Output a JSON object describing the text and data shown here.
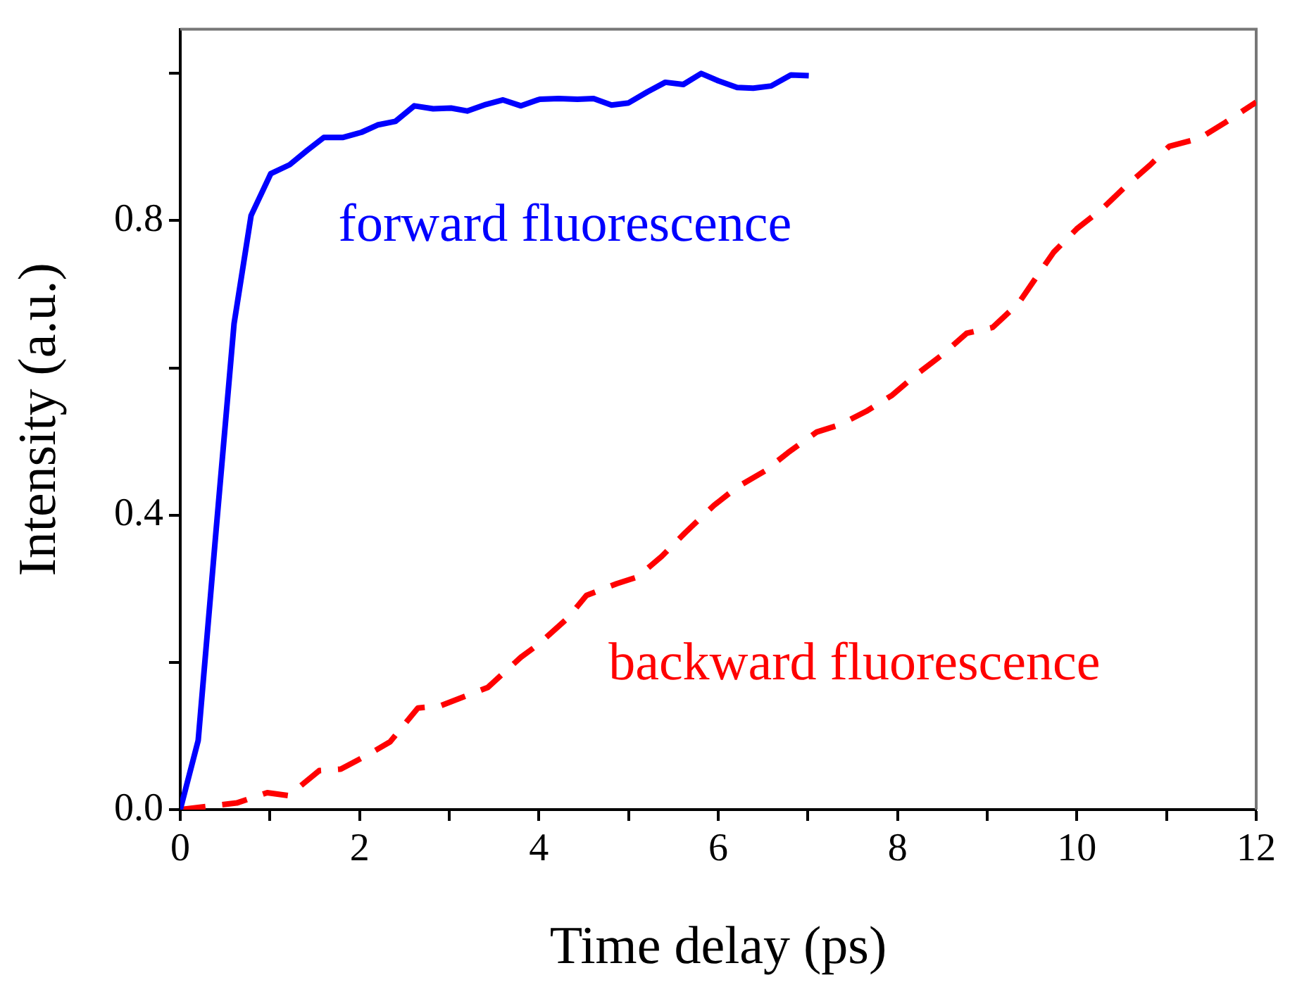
{
  "chart_data": {
    "type": "line",
    "xlabel": "Time delay (ps)",
    "ylabel": "Intensity (a.u.)",
    "xlim": [
      0,
      12
    ],
    "ylim": [
      0,
      1.06
    ],
    "xticks": [
      0,
      {
        "value": 1,
        "label": null
      },
      2,
      {
        "value": 3,
        "label": null
      },
      4,
      {
        "value": 5,
        "label": null
      },
      6,
      {
        "value": 7,
        "label": null
      },
      8,
      {
        "value": 9,
        "label": null
      },
      10,
      {
        "value": 11,
        "label": null
      },
      12
    ],
    "yticks": [
      {
        "value": 0,
        "label": "0.0"
      },
      {
        "value": 0.2,
        "label": null
      },
      0.4,
      {
        "value": 0.6,
        "label": null
      },
      0.8,
      {
        "value": 1.0,
        "label": null
      }
    ],
    "grid": false,
    "legend": false,
    "marker": "none",
    "series": [
      {
        "name": "forward fluorescence",
        "color": "#0000ff",
        "line_style": "solid",
        "x": [
          0,
          0.2,
          0.4,
          0.6,
          0.79,
          1.01,
          1.22,
          1.42,
          1.6,
          1.81,
          2.02,
          2.2,
          2.4,
          2.61,
          2.82,
          3.02,
          3.2,
          3.41,
          3.6,
          3.8,
          4.01,
          4.22,
          4.43,
          4.61,
          4.81,
          5.0,
          5.21,
          5.41,
          5.61,
          5.81,
          6.0,
          6.21,
          6.39,
          6.59,
          6.81,
          7.01
        ],
        "values": [
          0,
          0.094,
          0.38,
          0.66,
          0.807,
          0.864,
          0.876,
          0.896,
          0.913,
          0.913,
          0.92,
          0.93,
          0.935,
          0.956,
          0.952,
          0.953,
          0.949,
          0.958,
          0.964,
          0.956,
          0.965,
          0.966,
          0.965,
          0.966,
          0.957,
          0.96,
          0.975,
          0.988,
          0.985,
          1.0,
          0.99,
          0.981,
          0.98,
          0.983,
          0.998,
          0.997
        ]
      },
      {
        "name": "backward fluorescence",
        "color": "#ff0000",
        "line_style": "dashed",
        "x": [
          0,
          0.63,
          0.97,
          1.21,
          1.55,
          1.79,
          2.1,
          2.34,
          2.65,
          2.9,
          3.43,
          3.8,
          4.0,
          4.32,
          4.53,
          4.87,
          5.1,
          5.37,
          5.63,
          5.95,
          6.21,
          6.52,
          6.78,
          7.1,
          7.36,
          7.65,
          7.94,
          8.22,
          8.49,
          8.77,
          9.06,
          9.35,
          9.53,
          9.74,
          10.0,
          10.29,
          10.53,
          10.82,
          11.03,
          11.37,
          11.65,
          12.0
        ],
        "values": [
          0,
          0.009,
          0.023,
          0.019,
          0.053,
          0.055,
          0.075,
          0.092,
          0.138,
          0.141,
          0.166,
          0.207,
          0.225,
          0.26,
          0.291,
          0.307,
          0.316,
          0.344,
          0.376,
          0.413,
          0.438,
          0.46,
          0.485,
          0.513,
          0.523,
          0.541,
          0.563,
          0.592,
          0.617,
          0.647,
          0.655,
          0.688,
          0.72,
          0.757,
          0.789,
          0.817,
          0.845,
          0.876,
          0.901,
          0.912,
          0.933,
          0.961
        ]
      }
    ]
  }
}
